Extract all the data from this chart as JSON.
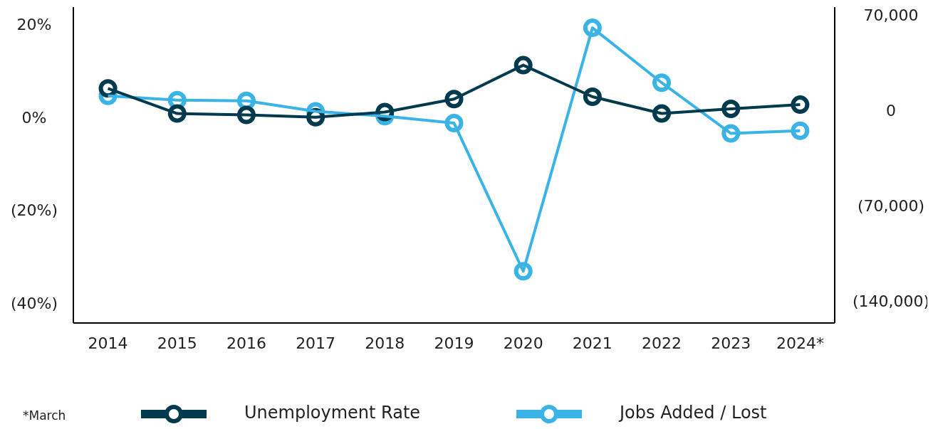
{
  "chart_data": {
    "type": "line",
    "categories": [
      "2014",
      "2015",
      "2016",
      "2017",
      "2018",
      "2019",
      "2020",
      "2021",
      "2022",
      "2023",
      "2024*"
    ],
    "series": [
      {
        "name": "Unemployment Rate",
        "color": "#003a4f",
        "values": [
          6.5,
          1.1,
          0.8,
          0.3,
          1.4,
          4.2,
          11.5,
          4.7,
          1.1,
          2.1,
          3.0
        ]
      },
      {
        "name": "Jobs Added / Lost",
        "color": "#3ab4e6",
        "axis": "y2",
        "values": [
          11800,
          8700,
          8200,
          500,
          -3100,
          -8200,
          -117000,
          61800,
          21500,
          -15800,
          -13800
        ]
      }
    ],
    "ylim": [
      -44,
      24
    ],
    "yticks": [
      {
        "value": 20,
        "label": "20%"
      },
      {
        "value": 0,
        "label": "0%"
      },
      {
        "value": -20,
        "label": "(20%)"
      },
      {
        "value": -40,
        "label": "(40%)"
      }
    ],
    "y2lim": [
      -155000,
      77000
    ],
    "y2ticks": [
      {
        "value": 70000,
        "label": "70,000"
      },
      0,
      {
        "value": -70000,
        "label": "(70,000)"
      },
      {
        "value": -140000,
        "label": "(140,000)"
      }
    ],
    "marker": "circle",
    "line_style": "solid",
    "grid": false,
    "legend": "bottom",
    "annotations": [
      "*March"
    ]
  }
}
